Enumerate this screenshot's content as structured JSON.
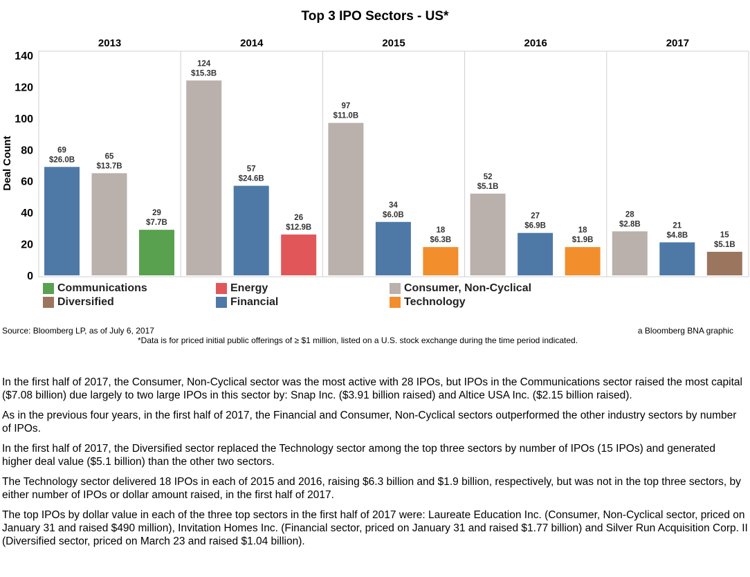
{
  "chart_data": {
    "type": "bar",
    "title": "Top 3 IPO Sectors - US*",
    "ylabel": "Deal Count",
    "xlabel": "",
    "ylim": [
      0,
      140
    ],
    "yticks": [
      0,
      20,
      40,
      60,
      80,
      100,
      120,
      140
    ],
    "panels": [
      {
        "year": "2013",
        "bars": [
          {
            "sector": "Financial",
            "count": 69,
            "value": "$26.0B"
          },
          {
            "sector": "Consumer, Non-Cyclical",
            "count": 65,
            "value": "$13.7B"
          },
          {
            "sector": "Communications",
            "count": 29,
            "value": "$7.7B"
          }
        ]
      },
      {
        "year": "2014",
        "bars": [
          {
            "sector": "Consumer, Non-Cyclical",
            "count": 124,
            "value": "$15.3B"
          },
          {
            "sector": "Financial",
            "count": 57,
            "value": "$24.6B"
          },
          {
            "sector": "Energy",
            "count": 26,
            "value": "$12.9B"
          }
        ]
      },
      {
        "year": "2015",
        "bars": [
          {
            "sector": "Consumer, Non-Cyclical",
            "count": 97,
            "value": "$11.0B"
          },
          {
            "sector": "Financial",
            "count": 34,
            "value": "$6.0B"
          },
          {
            "sector": "Technology",
            "count": 18,
            "value": "$6.3B"
          }
        ]
      },
      {
        "year": "2016",
        "bars": [
          {
            "sector": "Consumer, Non-Cyclical",
            "count": 52,
            "value": "$5.1B"
          },
          {
            "sector": "Financial",
            "count": 27,
            "value": "$6.9B"
          },
          {
            "sector": "Technology",
            "count": 18,
            "value": "$1.9B"
          }
        ]
      },
      {
        "year": "2017",
        "bars": [
          {
            "sector": "Consumer, Non-Cyclical",
            "count": 28,
            "value": "$2.8B"
          },
          {
            "sector": "Financial",
            "count": 21,
            "value": "$4.8B"
          },
          {
            "sector": "Diversified",
            "count": 15,
            "value": "$5.1B"
          }
        ]
      }
    ],
    "legend": [
      {
        "label": "Communications",
        "color": "#59a14f"
      },
      {
        "label": "Energy",
        "color": "#e15759"
      },
      {
        "label": "Consumer, Non-Cyclical",
        "color": "#bab0ac"
      },
      {
        "label": "Diversified",
        "color": "#9c755f"
      },
      {
        "label": "Financial",
        "color": "#4e79a7"
      },
      {
        "label": "Technology",
        "color": "#f28e2b"
      }
    ]
  },
  "source": "Source: Bloomberg LP, as of July 6, 2017",
  "credit": "a Bloomberg BNA graphic",
  "footnote": "*Data is for priced initial public offerings of ≥ $1 million, listed on a U.S. stock exchange during the time period indicated.",
  "notes": [
    "In the first half of 2017, the Consumer, Non-Cyclical sector was the most active with 28 IPOs, but IPOs in the Communications sector raised the most capital ($7.08 billion) due largely to two large IPOs in this sector by: Snap Inc. ($3.91 billion raised) and Altice USA Inc. ($2.15 billion raised).",
    "As in the previous four years, in the first half of 2017, the Financial and Consumer, Non-Cyclical sectors outperformed the other industry sectors by number of IPOs.",
    "In the first half of 2017, the Diversified sector replaced the Technology sector among the top three sectors by number of IPOs (15 IPOs) and generated higher deal value ($5.1 billion) than the other two sectors.",
    "The Technology sector delivered 18 IPOs in each of 2015 and 2016, raising $6.3 billion and $1.9 billion, respectively, but was not in the top three sectors, by either number of IPOs or dollar amount raised, in the first half of 2017.",
    "The top IPOs by dollar value in each of the three top sectors in the first half of 2017 were: Laureate Education Inc. (Consumer, Non-Cyclical sector, priced on January 31 and raised $490 million), Invitation Homes Inc. (Financial sector, priced on January 31 and raised $1.77 billion) and Silver Run Acquisition Corp. II (Diversified sector, priced on March 23 and raised $1.04 billion)."
  ]
}
